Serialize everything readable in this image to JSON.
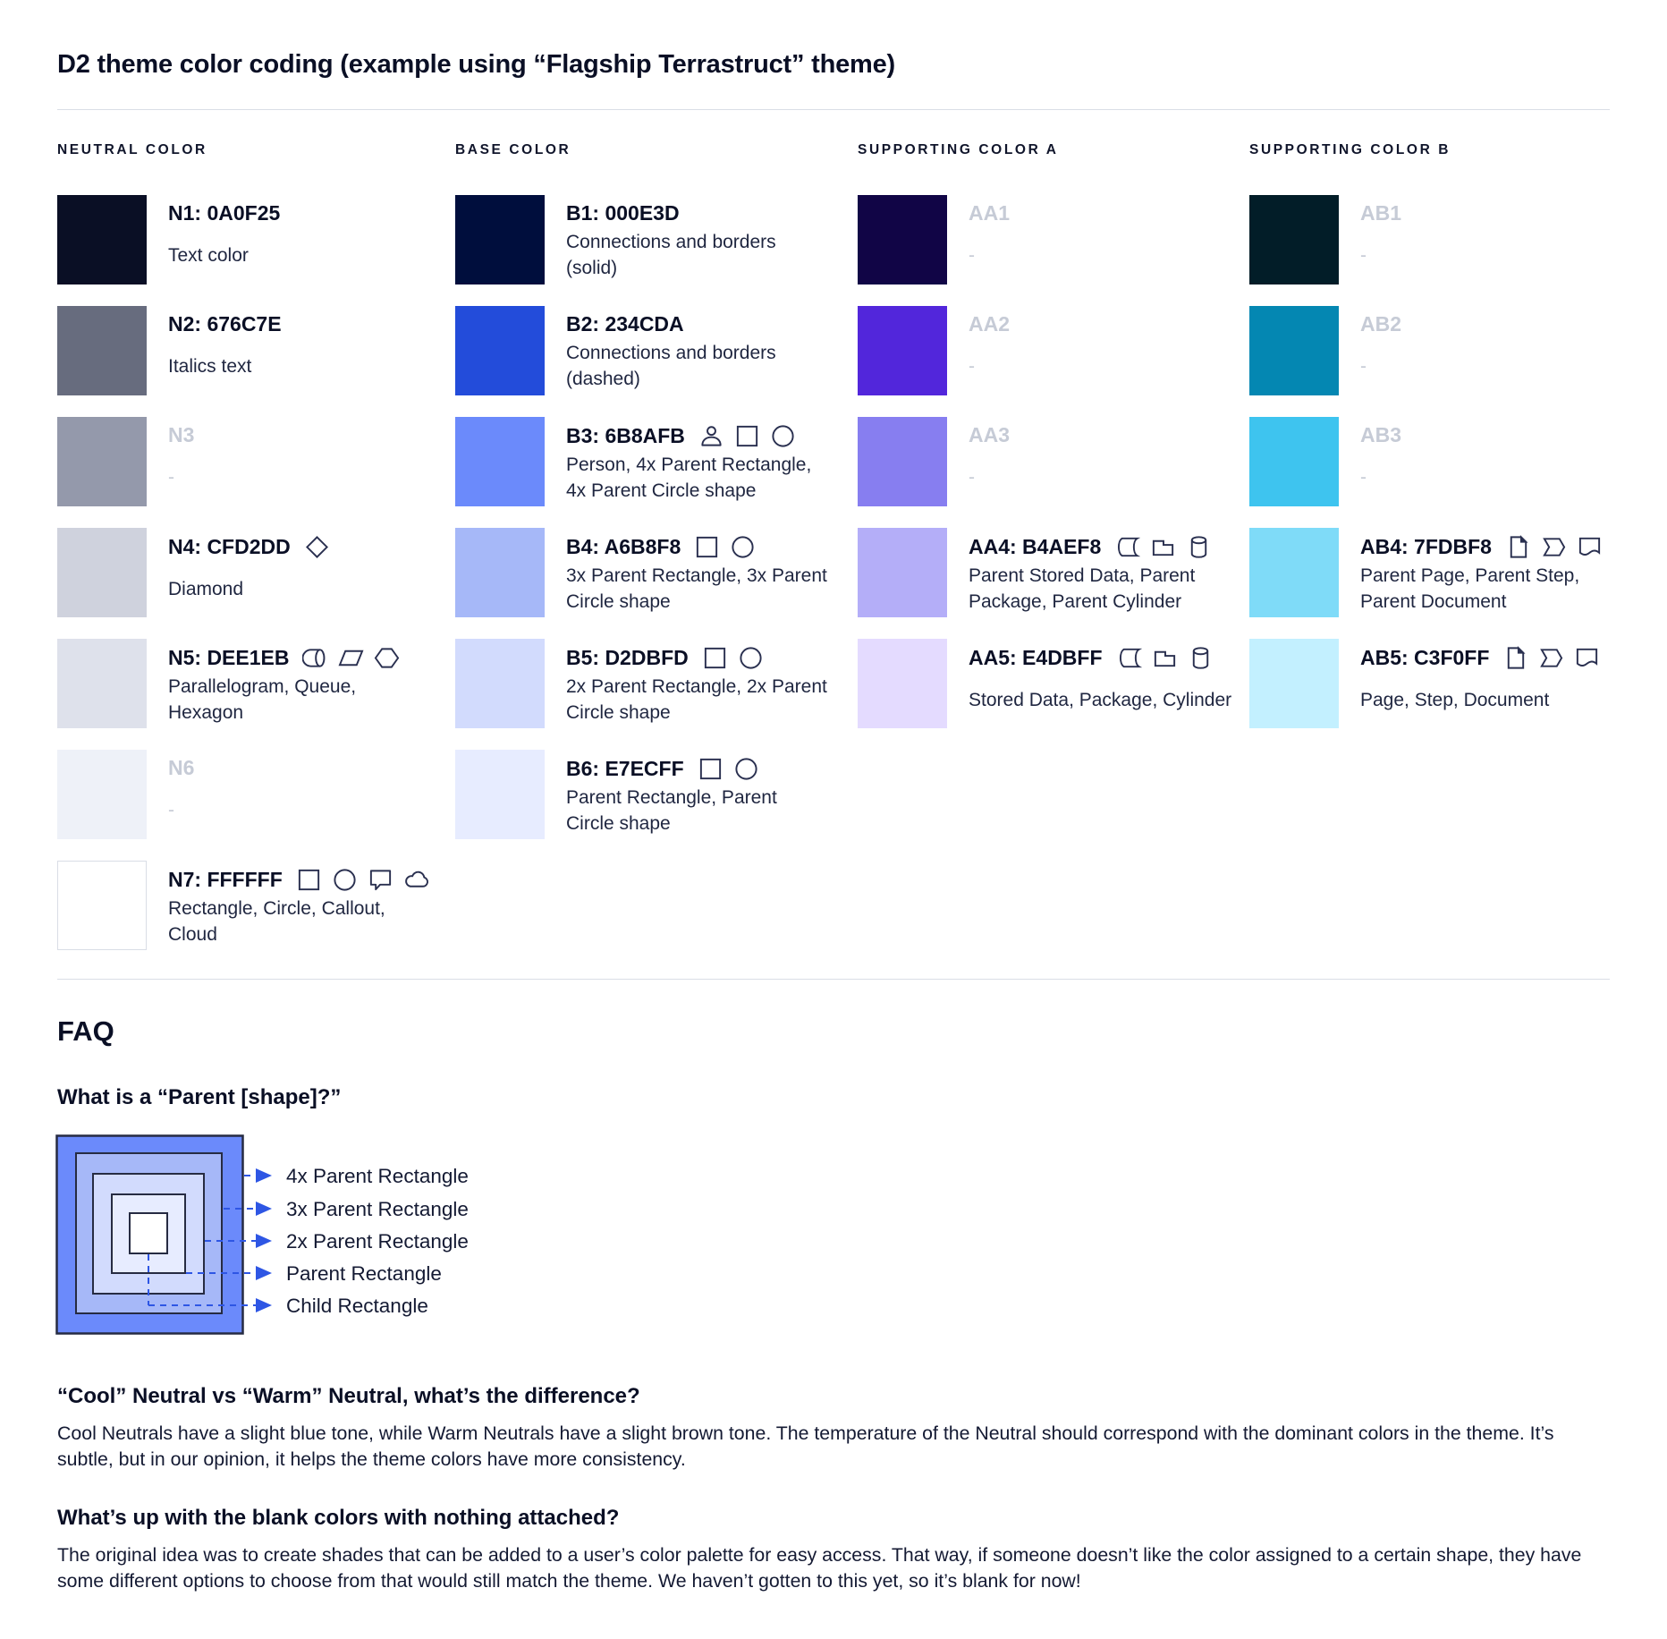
{
  "page": {
    "title": "D2 theme color coding (example using “Flagship Terrastruct” theme)"
  },
  "theme": {
    "heading_text_color": "#0A0F25",
    "body_text_color": "#1F2640",
    "muted_label_color": "#C6CBD6",
    "icon_stroke_color": "#2A3050",
    "divider_color": "#DADEE6",
    "diagram_arrow_color": "#2E56E4"
  },
  "columns": [
    {
      "header": "NEUTRAL COLOR",
      "entries": [
        {
          "title": "N1: 0A0F25",
          "desc": "Text color",
          "swatch": "#0A0F25",
          "muted": false,
          "icons": []
        },
        {
          "title": "N2: 676C7E",
          "desc": "Italics text",
          "swatch": "#676C7E",
          "muted": false,
          "icons": []
        },
        {
          "title": "N3",
          "desc": "-",
          "swatch": "#9499AB",
          "muted": true,
          "icons": []
        },
        {
          "title": "N4: CFD2DD",
          "desc": "Diamond",
          "swatch": "#CFD2DD",
          "muted": false,
          "icons": [
            "diamond"
          ]
        },
        {
          "title": "N5: DEE1EB",
          "desc": "Parallelogram, Queue, Hexagon",
          "swatch": "#DEE1EB",
          "muted": false,
          "icons": [
            "queue",
            "parallelogram",
            "hexagon"
          ]
        },
        {
          "title": "N6",
          "desc": "-",
          "swatch": "#EEF1F8",
          "muted": true,
          "icons": []
        },
        {
          "title": "N7: FFFFFF",
          "desc": "Rectangle, Circle, Callout, Cloud",
          "swatch": "#FFFFFF",
          "muted": false,
          "bordered": true,
          "icons": [
            "rectangle",
            "circle",
            "callout",
            "cloud"
          ]
        }
      ]
    },
    {
      "header": "BASE COLOR",
      "entries": [
        {
          "title": "B1: 000E3D",
          "desc": "Connections and borders (solid)",
          "swatch": "#000E3D",
          "muted": false,
          "icons": []
        },
        {
          "title": "B2: 234CDA",
          "desc": "Connections and borders (dashed)",
          "swatch": "#234CDA",
          "muted": false,
          "icons": []
        },
        {
          "title": "B3: 6B8AFB",
          "desc": "Person, 4x Parent Rectangle, 4x Parent Circle shape",
          "swatch": "#6B8AFB",
          "muted": false,
          "icons": [
            "person",
            "rectangle",
            "circle"
          ]
        },
        {
          "title": "B4: A6B8F8",
          "desc": "3x Parent Rectangle, 3x Parent Circle shape",
          "swatch": "#A6B8F8",
          "muted": false,
          "icons": [
            "rectangle",
            "circle"
          ]
        },
        {
          "title": "B5: D2DBFD",
          "desc": "2x Parent Rectangle, 2x Parent Circle shape",
          "swatch": "#D2DBFD",
          "muted": false,
          "icons": [
            "rectangle",
            "circle"
          ]
        },
        {
          "title": "B6: E7ECFF",
          "desc": "Parent Rectangle, Parent Circle shape",
          "swatch": "#E7ECFF",
          "muted": false,
          "icons": [
            "rectangle",
            "circle"
          ]
        }
      ]
    },
    {
      "header": "SUPPORTING COLOR A",
      "entries": [
        {
          "title": "AA1",
          "desc": "-",
          "swatch": "#110546",
          "muted": true,
          "icons": []
        },
        {
          "title": "AA2",
          "desc": "-",
          "swatch": "#5226DB",
          "muted": true,
          "icons": []
        },
        {
          "title": "AA3",
          "desc": "-",
          "swatch": "#877EF0",
          "muted": true,
          "icons": []
        },
        {
          "title": "AA4: B4AEF8",
          "desc": "Parent Stored Data, Parent Package,  Parent Cylinder",
          "swatch": "#B4AEF8",
          "muted": false,
          "icons": [
            "stored-data",
            "package",
            "cylinder"
          ]
        },
        {
          "title": "AA5: E4DBFF",
          "desc": "Stored Data, Package, Cylinder",
          "swatch": "#E4DBFF",
          "muted": false,
          "icons": [
            "stored-data",
            "package",
            "cylinder"
          ]
        }
      ]
    },
    {
      "header": "SUPPORTING COLOR B",
      "entries": [
        {
          "title": "AB1",
          "desc": "-",
          "swatch": "#021D28",
          "muted": true,
          "icons": []
        },
        {
          "title": "AB2",
          "desc": "-",
          "swatch": "#0487B2",
          "muted": true,
          "icons": []
        },
        {
          "title": "AB3",
          "desc": "-",
          "swatch": "#3EC4EF",
          "muted": true,
          "icons": []
        },
        {
          "title": "AB4: 7FDBF8",
          "desc": "Parent Page, Parent Step, Parent Document",
          "swatch": "#7FDBF8",
          "muted": false,
          "icons": [
            "page",
            "step",
            "document"
          ]
        },
        {
          "title": "AB5: C3F0FF",
          "desc": "Page, Step, Document",
          "swatch": "#C3F0FF",
          "muted": false,
          "icons": [
            "page",
            "step",
            "document"
          ]
        }
      ]
    }
  ],
  "faq": {
    "title": "FAQ",
    "q1": "What is a “Parent [shape]?”",
    "diagram": {
      "arrow_color": "#2E56E4",
      "layers": [
        {
          "name": "4x-parent-rectangle",
          "color": "#6B8AFB"
        },
        {
          "name": "3x-parent-rectangle",
          "color": "#A6B8F8"
        },
        {
          "name": "2x-parent-rectangle",
          "color": "#D2DBFD"
        },
        {
          "name": "parent-rectangle",
          "color": "#E7ECFF"
        },
        {
          "name": "child-rectangle",
          "color": "#FFFFFF"
        }
      ],
      "labels": [
        "4x Parent Rectangle",
        "3x Parent Rectangle",
        "2x Parent Rectangle",
        "Parent Rectangle",
        "Child Rectangle"
      ]
    },
    "q2": "“Cool” Neutral vs “Warm” Neutral, what’s the difference?",
    "a2": "Cool Neutrals have a slight blue tone, while Warm Neutrals have a slight brown tone. The temperature of the Neutral should correspond with the dominant colors in the theme. It’s subtle, but in our opinion, it helps the theme colors have more consistency.",
    "q3": "What’s up with the blank colors with nothing attached?",
    "a3": "The original idea was to create shades that can be added to a user’s color palette for easy access. That way, if someone doesn’t like the color assigned to a certain shape, they have some different options to choose from that would still match the theme. We haven’t gotten to this yet, so it’s blank for now!"
  }
}
